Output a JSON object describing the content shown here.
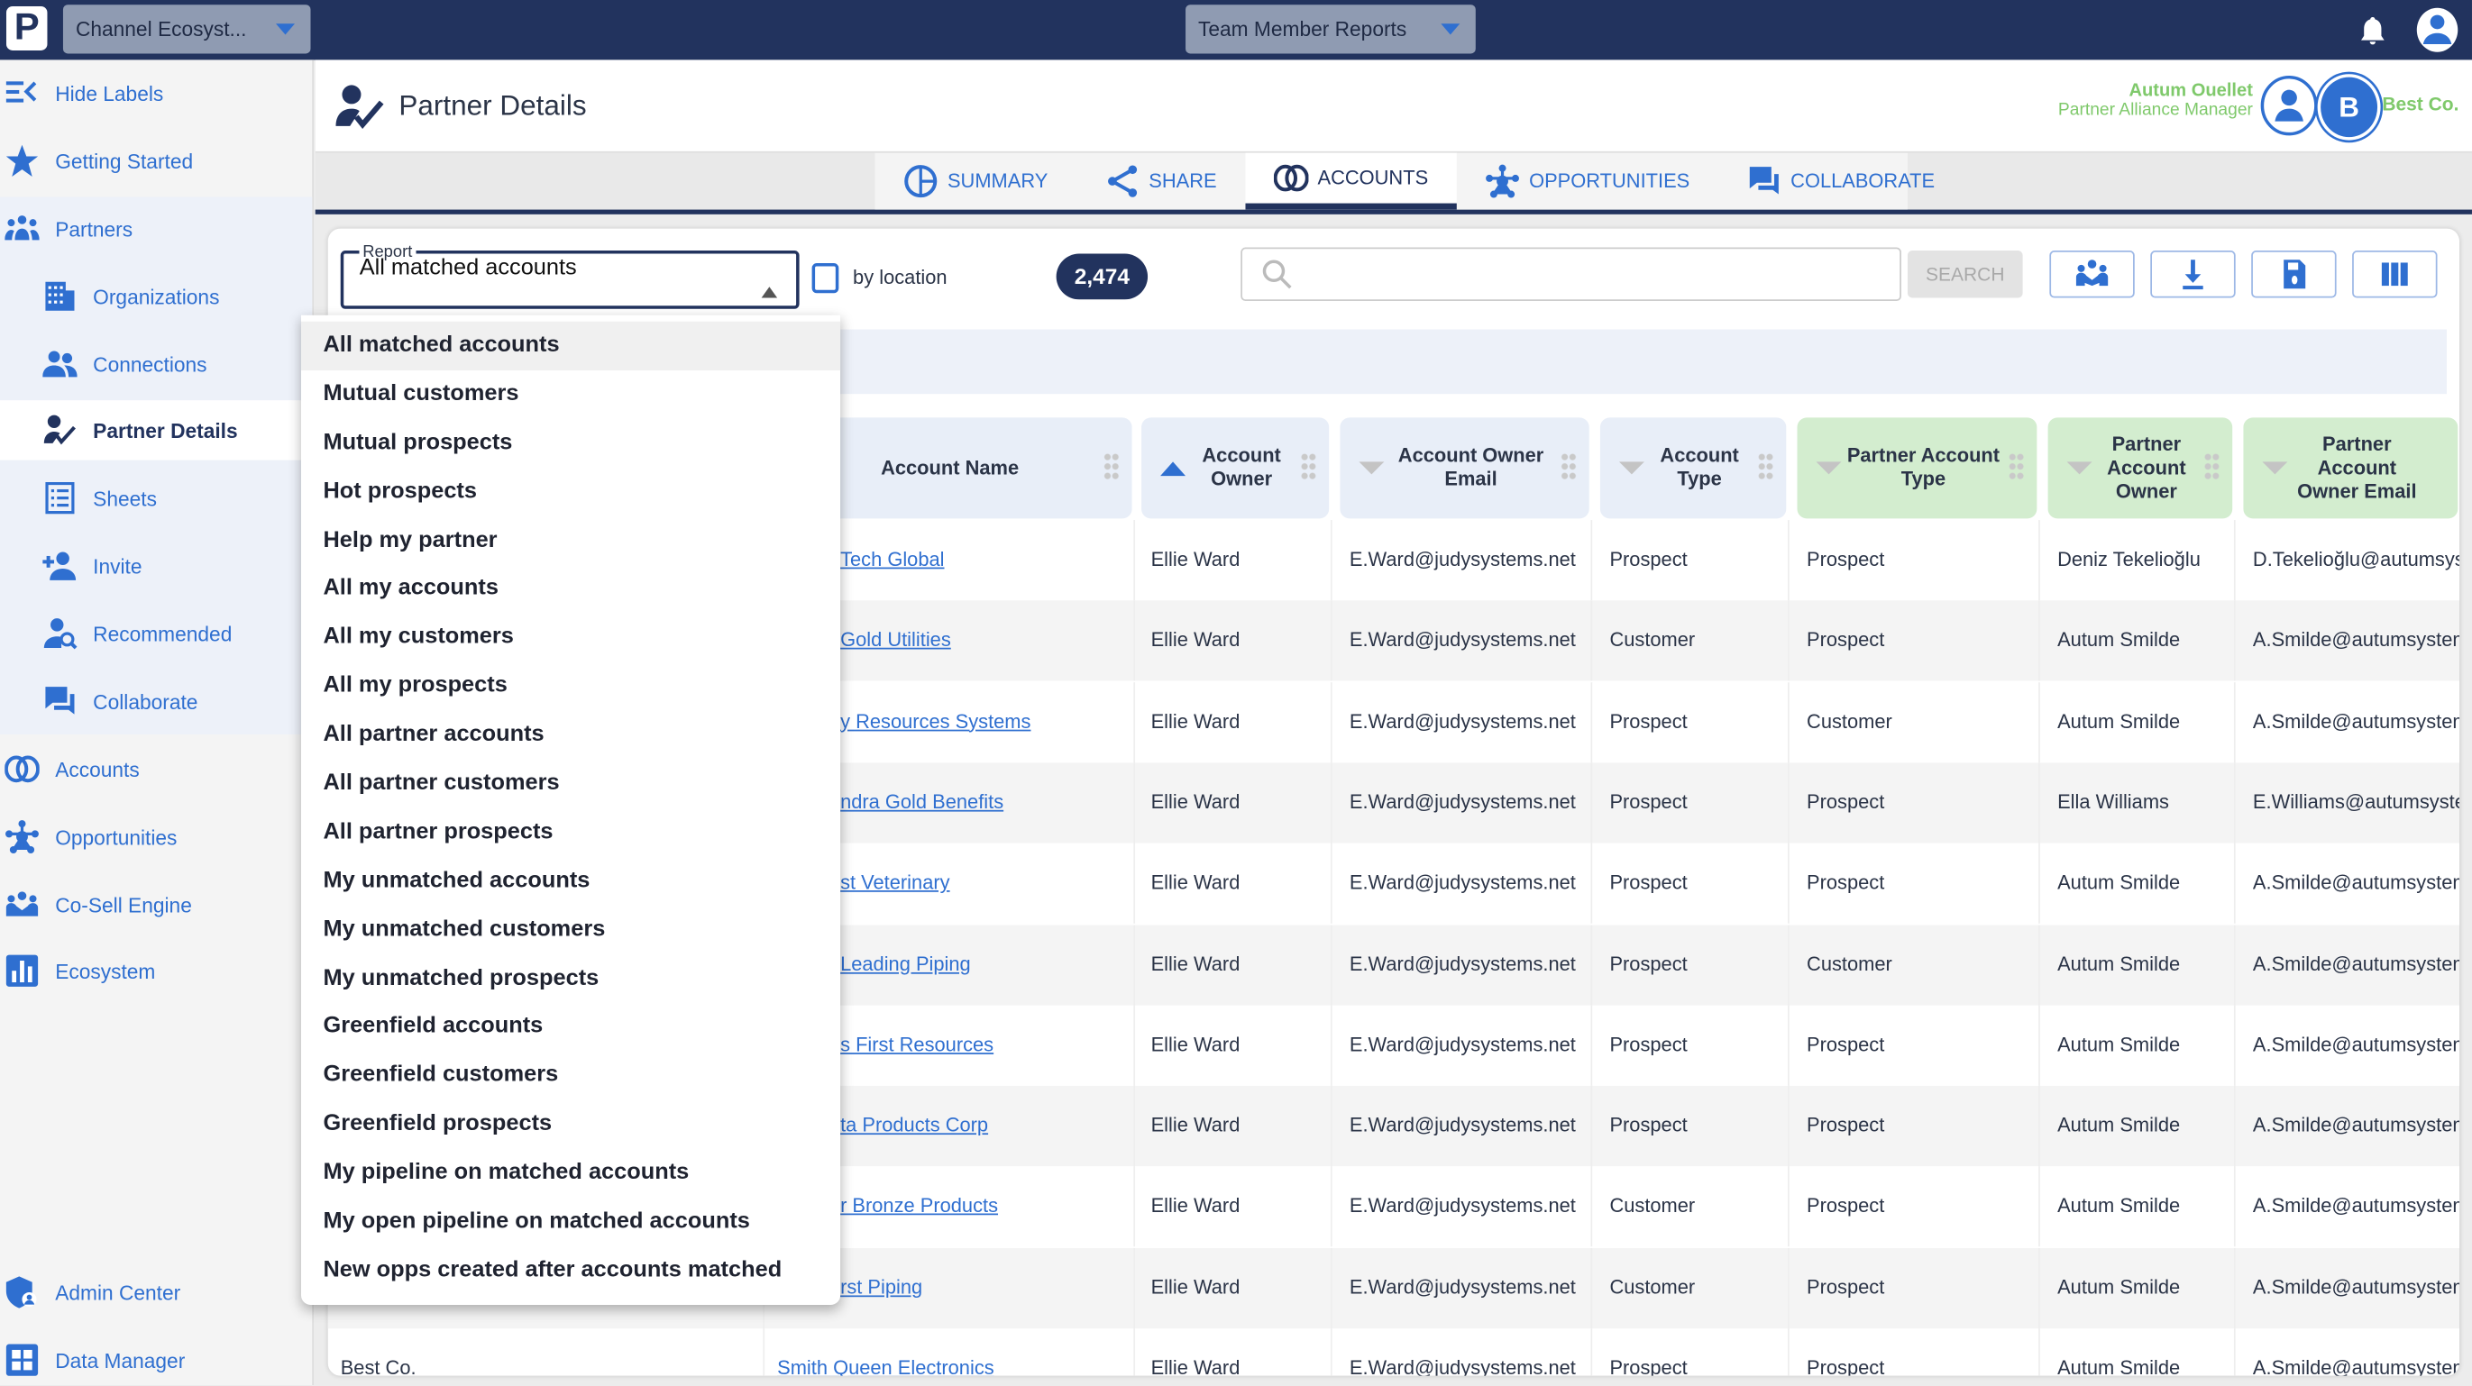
{
  "topbar": {
    "logo": "P",
    "ecosystem_select": "Channel Ecosyst...",
    "reports_select": "Team Member Reports",
    "icons": [
      "bell-icon",
      "user-icon"
    ]
  },
  "sidebar": {
    "items": [
      {
        "label": "Hide Labels",
        "icon": "hide-labels-icon"
      },
      {
        "label": "Getting Started",
        "icon": "star-icon"
      },
      {
        "label": "Partners",
        "icon": "partners-icon"
      },
      {
        "label": "Organizations",
        "icon": "building-icon"
      },
      {
        "label": "Connections",
        "icon": "connections-icon"
      },
      {
        "label": "Partner Details",
        "icon": "partner-details-icon",
        "active": true
      },
      {
        "label": "Sheets",
        "icon": "sheets-icon"
      },
      {
        "label": "Invite",
        "icon": "invite-icon"
      },
      {
        "label": "Recommended",
        "icon": "recommended-icon"
      },
      {
        "label": "Collaborate",
        "icon": "collaborate-icon"
      },
      {
        "label": "Accounts",
        "icon": "accounts-icon"
      },
      {
        "label": "Opportunities",
        "icon": "opportunities-icon"
      },
      {
        "label": "Co-Sell Engine",
        "icon": "co-sell-icon"
      },
      {
        "label": "Ecosystem",
        "icon": "ecosystem-icon"
      },
      {
        "label": "Admin Center",
        "icon": "admin-icon"
      },
      {
        "label": "Data Manager",
        "icon": "data-manager-icon"
      }
    ]
  },
  "header": {
    "title": "Partner Details",
    "user_name": "Autum Ouellet",
    "user_role": "Partner Alliance Manager",
    "partner_initial": "B",
    "partner_name": "Best Co."
  },
  "tabs": [
    {
      "label": "SUMMARY"
    },
    {
      "label": "SHARE"
    },
    {
      "label": "ACCOUNTS",
      "active": true
    },
    {
      "label": "OPPORTUNITIES"
    },
    {
      "label": "COLLABORATE"
    }
  ],
  "toolbar": {
    "report_label": "Report",
    "report_value": "All matched accounts",
    "by_location_label": "by location",
    "by_location_checked": false,
    "count": "2,474",
    "search_placeholder": "",
    "search_button": "SEARCH"
  },
  "report_options": [
    "All matched accounts",
    "Mutual customers",
    "Mutual prospects",
    "Hot prospects",
    "Help my partner",
    "All my accounts",
    "All my customers",
    "All my prospects",
    "All partner accounts",
    "All partner customers",
    "All partner prospects",
    "My unmatched accounts",
    "My unmatched customers",
    "My unmatched prospects",
    "Greenfield accounts",
    "Greenfield customers",
    "Greenfield prospects",
    "My pipeline on matched accounts",
    "My open pipeline on matched accounts",
    "New opps created after accounts matched"
  ],
  "table": {
    "columns": [
      "Account Name",
      "Account Owner",
      "Account Owner Email",
      "Account Type",
      "Partner Account Type",
      "Partner Account Owner",
      "Partner Account Owner Email"
    ],
    "rows": [
      [
        "",
        "Tech Global",
        "Ellie Ward",
        "E.Ward@judysystems.net",
        "Prospect",
        "Prospect",
        "Deniz Tekelioğlu",
        "D.Tekelioğlu@autumsys"
      ],
      [
        "",
        "Gold Utilities",
        "Ellie Ward",
        "E.Ward@judysystems.net",
        "Customer",
        "Prospect",
        "Autum Smilde",
        "A.Smilde@autumsystem"
      ],
      [
        "",
        "y Resources Systems",
        "Ellie Ward",
        "E.Ward@judysystems.net",
        "Prospect",
        "Customer",
        "Autum Smilde",
        "A.Smilde@autumsystem"
      ],
      [
        "",
        "ndra Gold Benefits",
        "Ellie Ward",
        "E.Ward@judysystems.net",
        "Prospect",
        "Prospect",
        "Ella Williams",
        "E.Williams@autumsyste"
      ],
      [
        "",
        "st Veterinary",
        "Ellie Ward",
        "E.Ward@judysystems.net",
        "Prospect",
        "Prospect",
        "Autum Smilde",
        "A.Smilde@autumsystem"
      ],
      [
        "",
        "Leading Piping",
        "Ellie Ward",
        "E.Ward@judysystems.net",
        "Prospect",
        "Customer",
        "Autum Smilde",
        "A.Smilde@autumsystem"
      ],
      [
        "",
        "s First Resources",
        "Ellie Ward",
        "E.Ward@judysystems.net",
        "Prospect",
        "Prospect",
        "Autum Smilde",
        "A.Smilde@autumsystem"
      ],
      [
        "",
        "ta Products Corp",
        "Ellie Ward",
        "E.Ward@judysystems.net",
        "Prospect",
        "Prospect",
        "Autum Smilde",
        "A.Smilde@autumsystem"
      ],
      [
        "",
        "r Bronze Products",
        "Ellie Ward",
        "E.Ward@judysystems.net",
        "Customer",
        "Prospect",
        "Autum Smilde",
        "A.Smilde@autumsystem"
      ],
      [
        "",
        "rst Piping",
        "Ellie Ward",
        "E.Ward@judysystems.net",
        "Customer",
        "Prospect",
        "Autum Smilde",
        "A.Smilde@autumsystem"
      ],
      [
        "Best Co.",
        "Smith Queen Electronics",
        "Ellie Ward",
        "E.Ward@judysystems.net",
        "Prospect",
        "Prospect",
        "Autum Smilde",
        "A.Smilde@autumsystem"
      ]
    ]
  },
  "colors": {
    "navy": "#22335e",
    "accent": "#2f6fd0",
    "partner_green": "#7fc96b",
    "partner_header": "#d3edcf"
  }
}
